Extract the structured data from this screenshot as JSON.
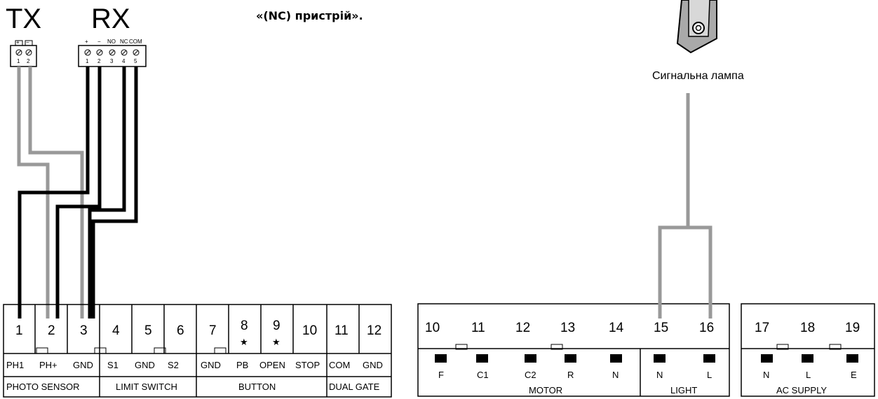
{
  "labels": {
    "tx": "TX",
    "rx": "RX",
    "note": "«(NC) пристрій».",
    "lamp": "Сигнальна лампа"
  },
  "tx_block": {
    "top_labels": [
      "+",
      "−"
    ],
    "numbers": [
      "1",
      "2"
    ]
  },
  "rx_block": {
    "top_labels": [
      "+",
      "−",
      "NO",
      "NC",
      "COM"
    ],
    "numbers": [
      "1",
      "2",
      "3",
      "4",
      "5"
    ]
  },
  "left_board": {
    "numbers": [
      "1",
      "2",
      "3",
      "4",
      "5",
      "6",
      "7",
      "8",
      "9",
      "10",
      "11",
      "12"
    ],
    "labels": [
      "PH1",
      "PH+",
      "GND",
      "S1",
      "GND",
      "S2",
      "GND",
      "PB",
      "OPEN",
      "STOP",
      "COM",
      "GND"
    ],
    "star_symbol": "★",
    "groups": [
      "PHOTO SENSOR",
      "LIMIT SWITCH",
      "BUTTON",
      "DUAL GATE"
    ]
  },
  "middle_board": {
    "numbers": [
      "10",
      "11",
      "12",
      "13",
      "14",
      "15",
      "16"
    ],
    "labels": [
      "F",
      "C1",
      "C2",
      "R",
      "N",
      "N",
      "L"
    ],
    "groups": [
      "MOTOR",
      "LIGHT"
    ]
  },
  "right_board": {
    "numbers": [
      "17",
      "18",
      "19"
    ],
    "labels": [
      "N",
      "L",
      "E"
    ],
    "groups": [
      "AC SUPPLY"
    ]
  },
  "colors": {
    "black_wire": "#000000",
    "gray_wire": "#999999",
    "lamp_body": "#a9a9a9"
  }
}
